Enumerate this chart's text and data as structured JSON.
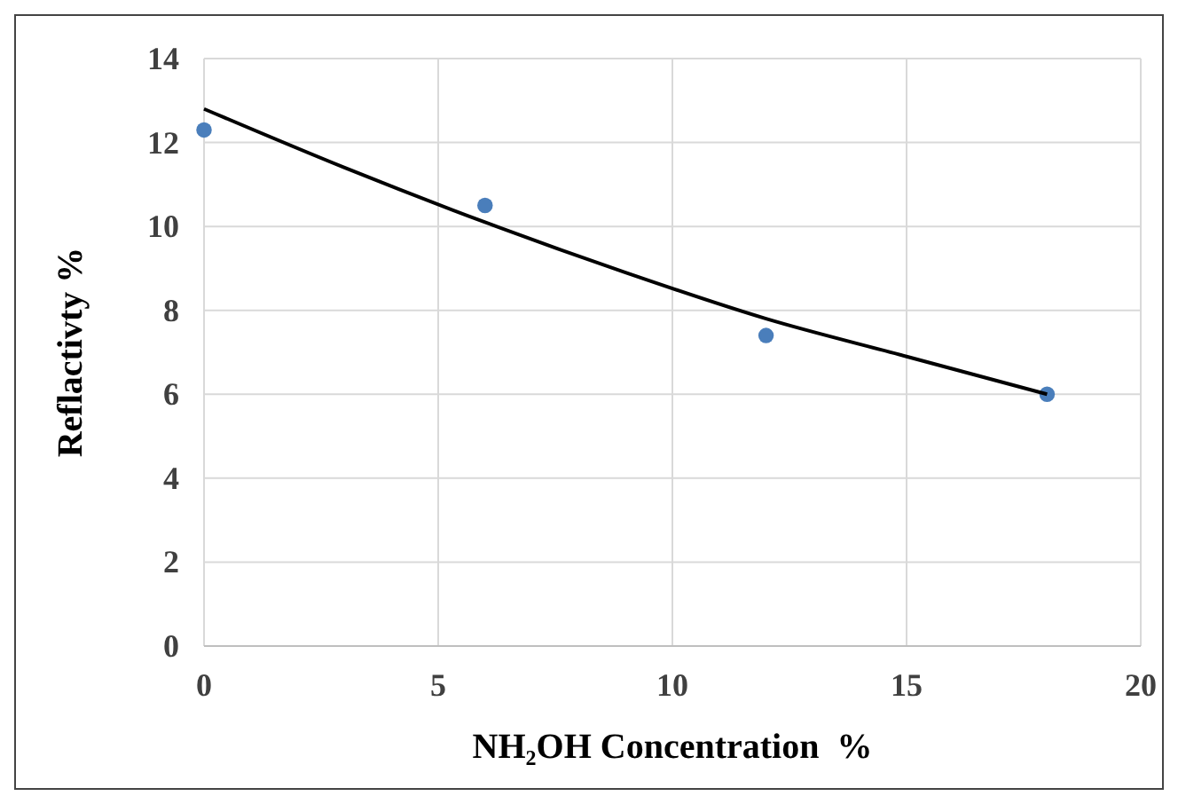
{
  "chart_data": {
    "type": "scatter",
    "xlabel": "NH₂OH Concentration  %",
    "ylabel": "Reflactivty %",
    "xlim": [
      0,
      20
    ],
    "xticks": [
      0,
      5,
      10,
      15,
      20
    ],
    "ylim": [
      0,
      14
    ],
    "yticks": [
      0,
      2,
      4,
      6,
      8,
      10,
      12,
      14
    ],
    "grid": true,
    "series": [
      {
        "color": "#4a7ebb",
        "marker": "circle",
        "x": [
          0,
          6,
          12,
          18
        ],
        "values": [
          12.3,
          10.5,
          7.4,
          6.0
        ]
      },
      {
        "type": "line",
        "color": "#000000",
        "marker": "none",
        "line_style": "solid",
        "x": [
          0,
          3,
          6,
          9,
          12,
          15,
          18
        ],
        "values": [
          12.8,
          11.4,
          10.1,
          8.9,
          7.8,
          6.9,
          6.0
        ]
      }
    ]
  }
}
